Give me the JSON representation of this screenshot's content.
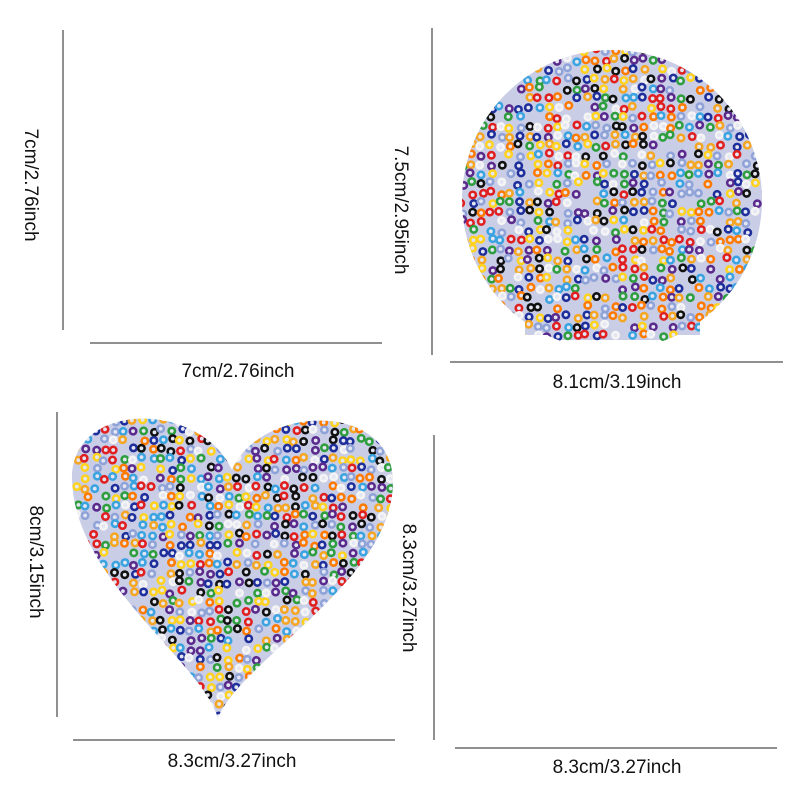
{
  "items": [
    {
      "height_label": "7cm/2.76inch",
      "width_label": "7cm/2.76inch"
    },
    {
      "height_label": "7.5cm/2.95inch",
      "width_label": "8.1cm/3.19inch"
    },
    {
      "height_label": "8cm/3.15inch",
      "width_label": "8.3cm/3.27inch"
    },
    {
      "height_label": "8.3cm/3.27inch",
      "width_label": "8.3cm/3.27inch"
    }
  ]
}
